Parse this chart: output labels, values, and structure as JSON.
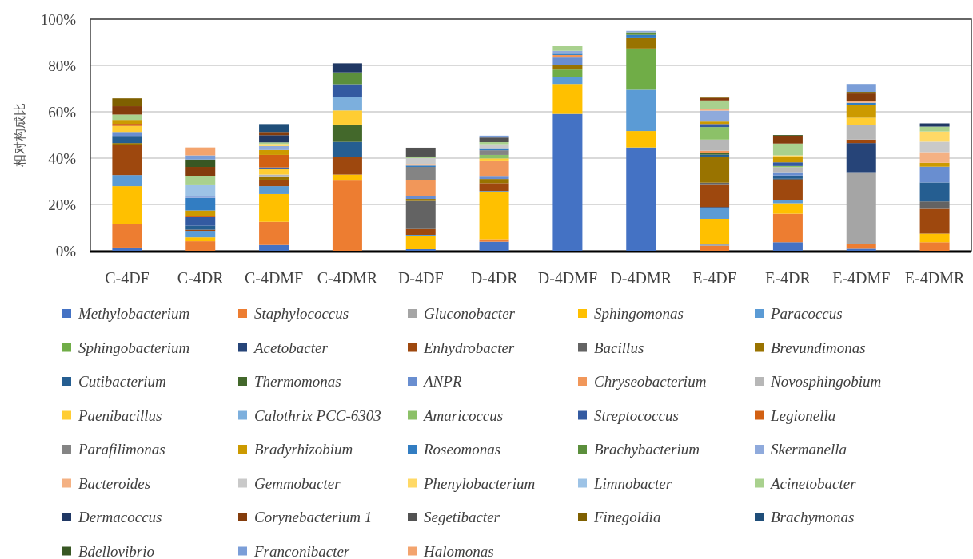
{
  "chart_data": {
    "type": "bar",
    "stacked": true,
    "ylabel": "相对构成比",
    "grid": "y",
    "legend": "bottom",
    "ylim": [
      0,
      100
    ],
    "yticks": [
      {
        "value": 0,
        "label": "0%"
      },
      {
        "value": 20,
        "label": "20%"
      },
      {
        "value": 40,
        "label": "40%"
      },
      {
        "value": 60,
        "label": "60%"
      },
      {
        "value": 80,
        "label": "80%"
      },
      {
        "value": 100,
        "label": "100%"
      }
    ],
    "categories": [
      "C-4DF",
      "C-4DR",
      "C-4DMF",
      "C-4DMR",
      "D-4DF",
      "D-4DR",
      "D-4DMF",
      "D-4DMR",
      "E-4DF",
      "E-4DR",
      "E-4DMF",
      "E-4DMR"
    ],
    "series": [
      {
        "name": "*Methylobacterium*",
        "color": "#4472c4",
        "values": [
          1.4,
          null,
          2.5,
          null,
          0.7,
          3.9,
          59.1,
          44.6,
          null,
          3.7,
          0.9,
          null
        ]
      },
      {
        "name": "*Staphylococcus*",
        "color": "#ed7d31",
        "values": [
          10.1,
          4.1,
          10.0,
          30.3,
          null,
          1.1,
          null,
          null,
          2.1,
          12.3,
          2.2,
          3.7
        ]
      },
      {
        "name": "*Gluconobacter*",
        "color": "#a5a5a5",
        "values": [
          null,
          null,
          null,
          null,
          null,
          null,
          null,
          null,
          0.7,
          null,
          30.5,
          null
        ]
      },
      {
        "name": "*Sphingomonas*",
        "color": "#ffc000",
        "values": [
          16.4,
          1.7,
          12.0,
          2.6,
          5.7,
          20.2,
          12.9,
          7.1,
          11.0,
          4.5,
          null,
          3.7
        ]
      },
      {
        "name": "*Paracoccus*",
        "color": "#5b9bd5",
        "values": [
          4.8,
          2.8,
          3.4,
          null,
          0.5,
          0.6,
          3.0,
          17.8,
          4.6,
          1.4,
          null,
          null
        ]
      },
      {
        "name": "*Sphingobacterium*",
        "color": "#70ad47",
        "values": [
          null,
          null,
          null,
          null,
          null,
          null,
          3.2,
          17.8,
          null,
          null,
          null,
          null
        ]
      },
      {
        "name": "*Acetobacter*",
        "color": "#264478",
        "values": [
          null,
          null,
          null,
          null,
          null,
          null,
          null,
          null,
          0.5,
          null,
          12.9,
          null
        ]
      },
      {
        "name": "*Enhydrobacter*",
        "color": "#9e480e",
        "values": [
          12.9,
          0.5,
          2.8,
          7.5,
          2.5,
          3.4,
          null,
          null,
          9.5,
          8.6,
          1.5,
          10.7
        ]
      },
      {
        "name": "*Bacillus*",
        "color": "#636363",
        "values": [
          null,
          null,
          null,
          null,
          12.1,
          null,
          null,
          null,
          1.0,
          0.6,
          null,
          3.2
        ]
      },
      {
        "name": "*Brevundimonas*",
        "color": "#997300",
        "values": [
          0.9,
          null,
          1.1,
          null,
          0.9,
          1.8,
          1.8,
          4.8,
          11.3,
          null,
          null,
          null
        ]
      },
      {
        "name": "*Cutibacterium*",
        "color": "#255e91",
        "values": [
          3.1,
          1.7,
          null,
          6.6,
          null,
          null,
          null,
          null,
          0.8,
          1.4,
          null,
          8.2
        ]
      },
      {
        "name": "*Thermomonas*",
        "color": "#43682b",
        "values": [
          null,
          null,
          null,
          7.5,
          null,
          null,
          null,
          null,
          0.9,
          null,
          null,
          null
        ]
      },
      {
        "name": "*ANPR*",
        "color": "#698ed0",
        "values": [
          1.7,
          null,
          null,
          null,
          1.3,
          1.0,
          3.4,
          null,
          null,
          1.1,
          null,
          6.8
        ]
      },
      {
        "name": "*Chryseobacterium*",
        "color": "#f1975a",
        "values": [
          null,
          null,
          null,
          null,
          6.8,
          7.0,
          1.1,
          null,
          0.8,
          null,
          null,
          null
        ]
      },
      {
        "name": "*Novosphingobium*",
        "color": "#b7b7b7",
        "values": [
          null,
          null,
          1.1,
          null,
          null,
          null,
          null,
          null,
          4.8,
          2.5,
          6.3,
          null
        ]
      },
      {
        "name": "*Paenibacillus*",
        "color": "#ffcd33",
        "values": [
          2.6,
          null,
          2.3,
          6.1,
          null,
          0.9,
          null,
          null,
          null,
          null,
          3.1,
          null
        ]
      },
      {
        "name": "*Calothrix PCC-6303*",
        "color": "#7cafdd",
        "values": [
          null,
          null,
          null,
          5.7,
          null,
          null,
          null,
          null,
          null,
          null,
          null,
          null
        ]
      },
      {
        "name": "*Amaricoccus*",
        "color": "#8cc168",
        "values": [
          null,
          null,
          null,
          null,
          null,
          1.5,
          null,
          null,
          5.4,
          0.5,
          null,
          null
        ]
      },
      {
        "name": "*Streptococcus*",
        "color": "#335aa1",
        "values": [
          null,
          3.7,
          0.8,
          5.6,
          null,
          null,
          null,
          null,
          0.8,
          1.6,
          null,
          null
        ]
      },
      {
        "name": "*Legionella*",
        "color": "#d26012",
        "values": [
          0.9,
          0.6,
          5.4,
          null,
          null,
          null,
          null,
          null,
          null,
          null,
          null,
          null
        ]
      },
      {
        "name": "*Parafilimonas*",
        "color": "#848484",
        "values": [
          null,
          null,
          null,
          null,
          5.7,
          2.0,
          null,
          null,
          0.6,
          null,
          null,
          null
        ]
      },
      {
        "name": "*Bradyrhizobium*",
        "color": "#cc9a00",
        "values": [
          1.7,
          2.3,
          2.1,
          null,
          null,
          null,
          null,
          null,
          1.0,
          2.3,
          5.5,
          1.7
        ]
      },
      {
        "name": "*Roseomonas*",
        "color": "#327dc2",
        "values": [
          null,
          5.4,
          null,
          null,
          0.6,
          0.9,
          0.9,
          1.1,
          null,
          null,
          1.0,
          null
        ]
      },
      {
        "name": "*Brachybacterium*",
        "color": "#5b8f3c",
        "values": [
          null,
          null,
          null,
          5.1,
          null,
          null,
          null,
          1.1,
          null,
          null,
          null,
          null
        ]
      },
      {
        "name": "*Skermanella*",
        "color": "#8faadc",
        "values": [
          null,
          0.9,
          1.7,
          null,
          null,
          null,
          0.9,
          0.6,
          4.7,
          null,
          null,
          null
        ]
      },
      {
        "name": "*Bacteroides*",
        "color": "#f4b183",
        "values": [
          null,
          null,
          null,
          null,
          0.7,
          null,
          null,
          null,
          0.8,
          null,
          0.6,
          4.6
        ]
      },
      {
        "name": "*Gemmobacter*",
        "color": "#c9c9c9",
        "values": [
          null,
          null,
          null,
          null,
          2.5,
          1.7,
          null,
          null,
          null,
          null,
          null,
          4.5
        ]
      },
      {
        "name": "*Phenylobacterium*",
        "color": "#ffd966",
        "values": [
          null,
          null,
          0.9,
          null,
          null,
          null,
          null,
          null,
          null,
          0.7,
          null,
          4.4
        ]
      },
      {
        "name": "*Limnobacter*",
        "color": "#9dc3e6",
        "values": [
          null,
          4.6,
          null,
          null,
          null,
          null,
          null,
          null,
          null,
          null,
          null,
          null
        ]
      },
      {
        "name": "*Acinetobacter*",
        "color": "#a9d18e",
        "values": [
          2.3,
          4.1,
          0.7,
          null,
          0.7,
          0.9,
          2.1,
          null,
          3.6,
          5.1,
          null,
          2.1
        ]
      },
      {
        "name": "*Dermacoccus*",
        "color": "#203864",
        "values": [
          null,
          null,
          3.1,
          3.9,
          null,
          null,
          null,
          null,
          null,
          null,
          null,
          1.4
        ]
      },
      {
        "name": "*Corynebacterium 1*",
        "color": "#843c0c",
        "values": [
          3.6,
          3.8,
          1.4,
          null,
          null,
          null,
          null,
          null,
          1.1,
          3.4,
          3.4,
          null
        ]
      },
      {
        "name": "*Segetibacter*",
        "color": "#525252",
        "values": [
          null,
          null,
          null,
          null,
          3.8,
          2.0,
          null,
          null,
          null,
          null,
          null,
          null
        ]
      },
      {
        "name": "*Finegoldia*",
        "color": "#7f6000",
        "values": [
          3.4,
          null,
          null,
          null,
          null,
          null,
          null,
          null,
          0.5,
          null,
          0.7,
          null
        ]
      },
      {
        "name": "*Brachymonas*",
        "color": "#1f4e79",
        "values": [
          null,
          null,
          3.4,
          null,
          null,
          null,
          null,
          null,
          null,
          null,
          null,
          null
        ]
      },
      {
        "name": "*Bdellovibrio*",
        "color": "#385723",
        "values": [
          null,
          3.2,
          null,
          null,
          null,
          null,
          null,
          null,
          null,
          0.3,
          null,
          null
        ]
      },
      {
        "name": "*Franconibacter*",
        "color": "#7b9ed8",
        "values": [
          null,
          1.8,
          null,
          null,
          null,
          0.8,
          null,
          null,
          null,
          null,
          3.4,
          null
        ]
      },
      {
        "name": "*Halomonas*",
        "color": "#f3a46e",
        "values": [
          null,
          3.4,
          null,
          null,
          null,
          null,
          null,
          null,
          null,
          null,
          null,
          null
        ]
      }
    ]
  }
}
